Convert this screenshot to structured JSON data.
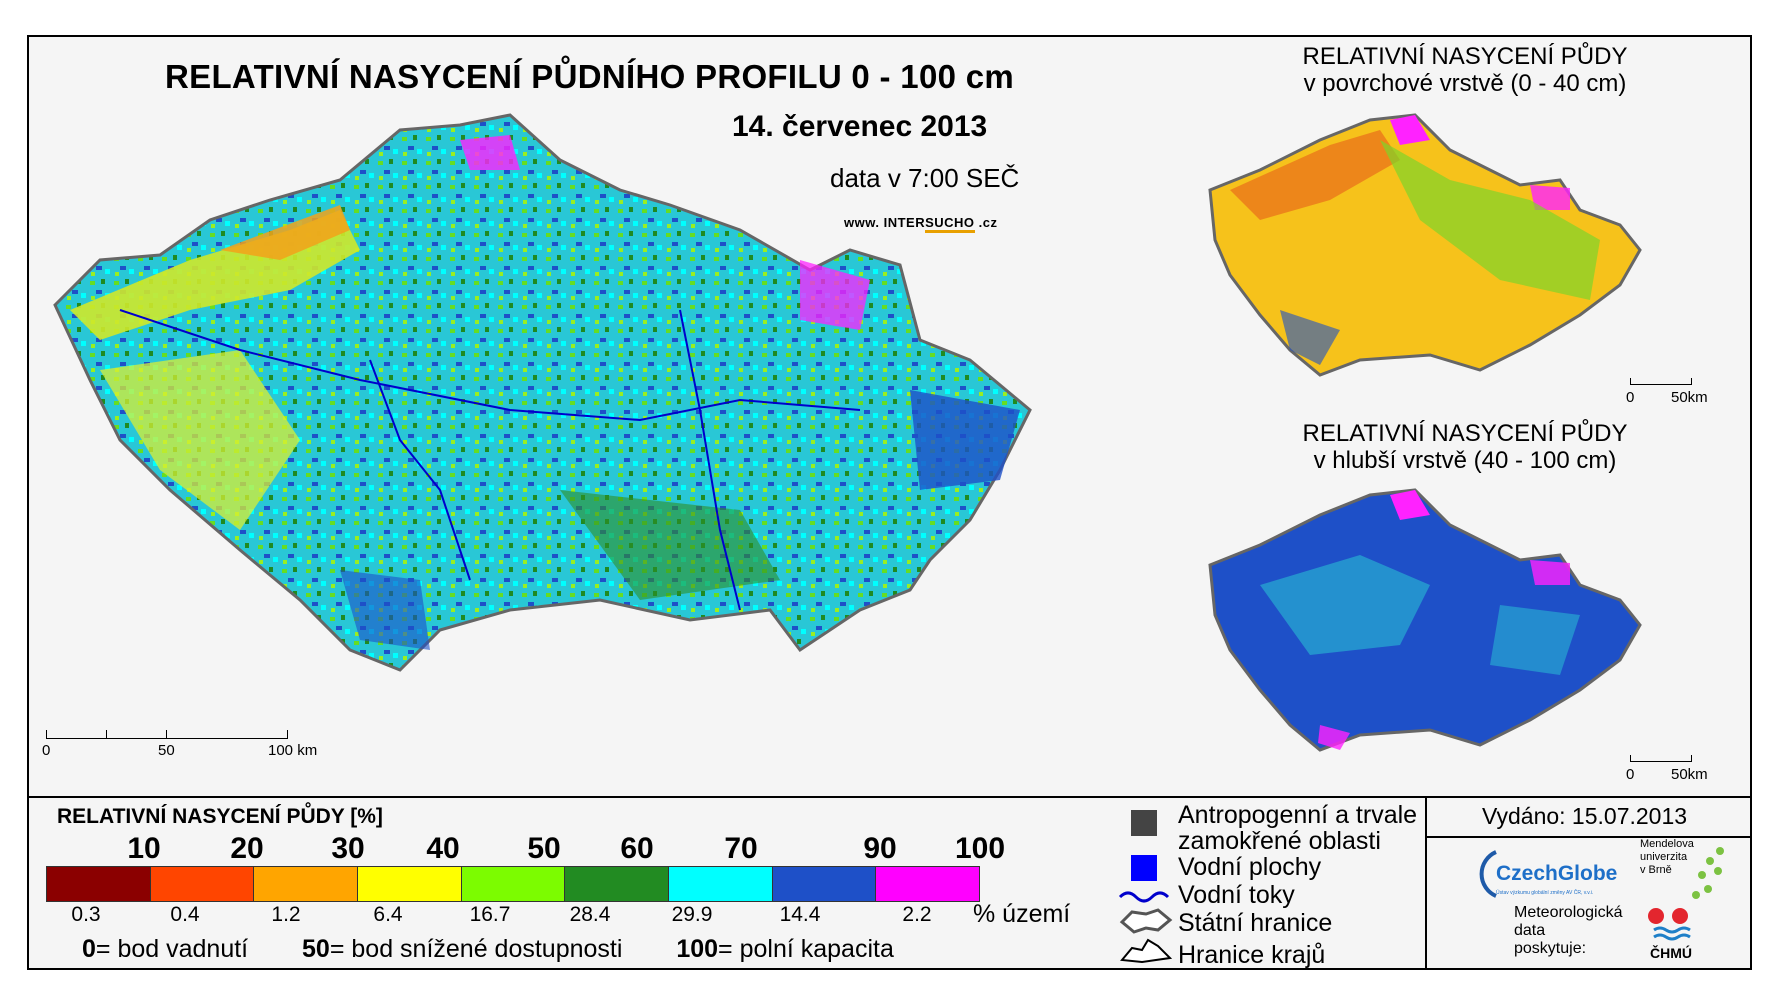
{
  "header": {
    "title": "RELATIVNÍ NASYCENÍ PŮDNÍHO PROFILU 0 - 100 cm",
    "date": "14. červenec 2013",
    "data_time": "data v 7:00 SEČ",
    "site_prefix": "www. INTER",
    "site_highlight": "SUCHO",
    "site_suffix": " .cz"
  },
  "inset_top": {
    "title_line1": "RELATIVNÍ NASYCENÍ PŮDY",
    "title_line2": "v povrchové vrstvě (0 - 40 cm)",
    "scale_0": "0",
    "scale_50": "50km"
  },
  "inset_bottom": {
    "title_line1": "RELATIVNÍ NASYCENÍ PŮDY",
    "title_line2": "v hlubší vrstvě (40 - 100 cm)",
    "scale_0": "0",
    "scale_50": "50km"
  },
  "main_scale": {
    "label_0": "0",
    "label_50": "50",
    "label_100": "100 km"
  },
  "legend": {
    "title": "RELATIVNÍ NASYCENÍ PŮDY [%]",
    "thresholds": [
      "10",
      "20",
      "30",
      "40",
      "50",
      "60",
      "70",
      "90",
      "100"
    ],
    "colors": [
      "#8b0000",
      "#ff4500",
      "#ffa500",
      "#ffff00",
      "#7cfc00",
      "#228b22",
      "#00ffff",
      "#1e50c8",
      "#ff00ff"
    ],
    "territory_pct": [
      "0.3",
      "0.4",
      "1.2",
      "6.4",
      "16.7",
      "28.4",
      "29.9",
      "14.4",
      "2.2"
    ],
    "territory_label": "% území",
    "footnote": {
      "v0": "0",
      "t0": "= bod vadnutí",
      "v50": "50",
      "t50": "= bod snížené dostupnosti",
      "v100": "100",
      "t100": "= polní kapacita"
    }
  },
  "map_legend": {
    "anthropogenic_line1": "Antropogenní a trvale",
    "anthropogenic_line2": "zamokřené oblasti",
    "water_bodies": "Vodní plochy",
    "rivers": "Vodní toky",
    "state_border": "Státní hranice",
    "region_border": "Hranice krajů",
    "colors": {
      "anthropogenic": "#444444",
      "water": "#0000ff",
      "river": "#0000cc"
    }
  },
  "issued": "Vydáno: 15.07.2013",
  "logos": {
    "czechglobe": "CzechGlobe",
    "czechglobe_sub": "Ústav výzkumu globální změny AV ČR, v.v.i.",
    "mendel_l1": "Mendelova",
    "mendel_l2": "univerzita",
    "mendel_l3": "v Brně",
    "meteo_l1": "Meteorologická",
    "meteo_l2": "data",
    "meteo_l3": "poskytuje:",
    "chmu": "ČHMÚ"
  }
}
